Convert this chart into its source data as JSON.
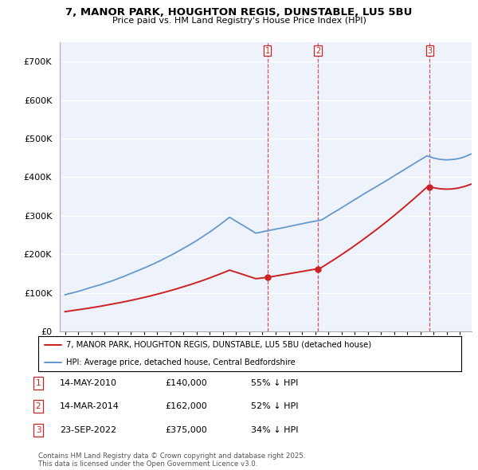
{
  "title1": "7, MANOR PARK, HOUGHTON REGIS, DUNSTABLE, LU5 5BU",
  "title2": "Price paid vs. HM Land Registry's House Price Index (HPI)",
  "legend_line1": "7, MANOR PARK, HOUGHTON REGIS, DUNSTABLE, LU5 5BU (detached house)",
  "legend_line2": "HPI: Average price, detached house, Central Bedfordshire",
  "footer": "Contains HM Land Registry data © Crown copyright and database right 2025.\nThis data is licensed under the Open Government Licence v3.0.",
  "sale_info": [
    {
      "label": "1",
      "date": "14-MAY-2010",
      "price": "£140,000",
      "pct": "55% ↓ HPI"
    },
    {
      "label": "2",
      "date": "14-MAR-2014",
      "price": "£162,000",
      "pct": "52% ↓ HPI"
    },
    {
      "label": "3",
      "date": "23-SEP-2022",
      "price": "£375,000",
      "pct": "34% ↓ HPI"
    }
  ],
  "hpi_color": "#6699cc",
  "price_color": "#cc2222",
  "vline_color": "#cc2222",
  "plot_bg": "#eef2fa",
  "ylim": [
    0,
    750000
  ],
  "yticks": [
    0,
    100000,
    200000,
    300000,
    400000,
    500000,
    600000,
    700000
  ],
  "ytick_labels": [
    "£0",
    "£100K",
    "£200K",
    "£300K",
    "£400K",
    "£500K",
    "£600K",
    "£700K"
  ],
  "xlim_start": 1994.6,
  "xlim_end": 2025.9
}
